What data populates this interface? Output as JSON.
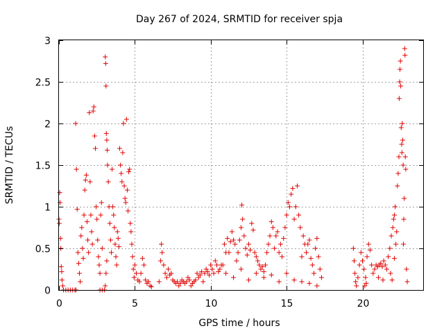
{
  "chart_data": {
    "type": "scatter",
    "title": "Day 267 of 2024, SRMTID for receiver spja",
    "xlabel": "GPS time / hours",
    "ylabel": "SRMTID / TECUs",
    "xlim": [
      0,
      24
    ],
    "ylim": [
      0,
      3
    ],
    "xticks": [
      0,
      5,
      10,
      15,
      20
    ],
    "xtick_labels": [
      "0",
      "5",
      "10",
      "15",
      "20"
    ],
    "yticks": [
      0,
      0.5,
      1,
      1.5,
      2,
      2.5,
      3
    ],
    "ytick_labels": [
      "0",
      "0.5",
      "1",
      "1.5",
      "2",
      "2.5",
      "3"
    ],
    "grid": true,
    "marker": "+",
    "color": "#e00000",
    "series": [
      {
        "name": "SRMTID",
        "points": [
          [
            0.0,
            0.85
          ],
          [
            0.02,
            0.8
          ],
          [
            0.05,
            1.17
          ],
          [
            0.07,
            1.05
          ],
          [
            0.1,
            0.62
          ],
          [
            0.12,
            0.5
          ],
          [
            0.15,
            0.28
          ],
          [
            0.18,
            0.22
          ],
          [
            0.2,
            0.12
          ],
          [
            0.25,
            0.05
          ],
          [
            0.3,
            0.0
          ],
          [
            0.45,
            0.0
          ],
          [
            0.6,
            0.0
          ],
          [
            0.75,
            0.0
          ],
          [
            0.9,
            0.0
          ],
          [
            1.05,
            0.0
          ],
          [
            1.12,
            0.0
          ],
          [
            1.1,
            2.0
          ],
          [
            1.15,
            1.45
          ],
          [
            1.2,
            0.97
          ],
          [
            1.25,
            0.45
          ],
          [
            1.3,
            0.32
          ],
          [
            1.35,
            0.2
          ],
          [
            1.4,
            0.1
          ],
          [
            1.45,
            0.65
          ],
          [
            1.5,
            0.75
          ],
          [
            1.55,
            0.5
          ],
          [
            1.6,
            0.38
          ],
          [
            1.65,
            0.9
          ],
          [
            1.7,
            1.2
          ],
          [
            1.75,
            1.32
          ],
          [
            1.8,
            1.38
          ],
          [
            1.85,
            0.82
          ],
          [
            1.9,
            0.6
          ],
          [
            1.95,
            0.45
          ],
          [
            2.0,
            2.13
          ],
          [
            2.05,
            1.3
          ],
          [
            2.1,
            0.9
          ],
          [
            2.15,
            0.7
          ],
          [
            2.2,
            0.55
          ],
          [
            2.25,
            2.15
          ],
          [
            2.3,
            2.2
          ],
          [
            2.35,
            1.85
          ],
          [
            2.4,
            1.7
          ],
          [
            2.45,
            1.0
          ],
          [
            2.5,
            0.85
          ],
          [
            2.55,
            0.6
          ],
          [
            2.6,
            0.4
          ],
          [
            2.65,
            0.3
          ],
          [
            2.7,
            0.2
          ],
          [
            2.75,
            0.9
          ],
          [
            2.8,
            1.05
          ],
          [
            2.85,
            0.5
          ],
          [
            2.7,
            0.0
          ],
          [
            2.85,
            0.0
          ],
          [
            3.0,
            0.0
          ],
          [
            3.05,
            0.05
          ],
          [
            3.1,
            0.2
          ],
          [
            3.15,
            0.35
          ],
          [
            3.05,
            2.8
          ],
          [
            3.08,
            2.72
          ],
          [
            3.1,
            2.45
          ],
          [
            3.12,
            1.88
          ],
          [
            3.15,
            1.8
          ],
          [
            3.18,
            1.68
          ],
          [
            3.2,
            1.5
          ],
          [
            3.25,
            1.3
          ],
          [
            3.3,
            1.0
          ],
          [
            3.35,
            0.8
          ],
          [
            3.4,
            0.6
          ],
          [
            3.45,
            0.45
          ],
          [
            3.5,
            1.45
          ],
          [
            3.55,
            1.0
          ],
          [
            3.6,
            0.9
          ],
          [
            3.65,
            0.75
          ],
          [
            3.7,
            0.55
          ],
          [
            3.75,
            0.4
          ],
          [
            3.8,
            0.3
          ],
          [
            3.85,
            0.7
          ],
          [
            3.9,
            0.62
          ],
          [
            3.95,
            0.52
          ],
          [
            4.0,
            1.7
          ],
          [
            4.05,
            1.5
          ],
          [
            4.1,
            1.4
          ],
          [
            4.15,
            1.3
          ],
          [
            4.2,
            1.65
          ],
          [
            4.25,
            2.0
          ],
          [
            4.3,
            1.25
          ],
          [
            4.35,
            1.1
          ],
          [
            4.4,
            1.05
          ],
          [
            4.45,
            2.05
          ],
          [
            4.5,
            1.2
          ],
          [
            4.55,
            0.95
          ],
          [
            4.6,
            1.42
          ],
          [
            4.65,
            1.45
          ],
          [
            4.7,
            0.8
          ],
          [
            4.75,
            0.7
          ],
          [
            4.8,
            0.55
          ],
          [
            4.85,
            0.4
          ],
          [
            4.9,
            0.25
          ],
          [
            4.95,
            0.15
          ],
          [
            5.0,
            0.3
          ],
          [
            5.1,
            0.2
          ],
          [
            5.2,
            0.12
          ],
          [
            5.3,
            0.1
          ],
          [
            5.4,
            0.2
          ],
          [
            5.5,
            0.38
          ],
          [
            5.6,
            0.3
          ],
          [
            5.7,
            0.12
          ],
          [
            5.8,
            0.08
          ],
          [
            5.9,
            0.1
          ],
          [
            6.0,
            0.05
          ],
          [
            6.1,
            0.04
          ],
          [
            6.6,
            0.1
          ],
          [
            6.7,
            0.35
          ],
          [
            6.75,
            0.55
          ],
          [
            6.8,
            0.45
          ],
          [
            6.9,
            0.3
          ],
          [
            7.0,
            0.2
          ],
          [
            7.1,
            0.15
          ],
          [
            7.2,
            0.25
          ],
          [
            7.3,
            0.18
          ],
          [
            7.4,
            0.2
          ],
          [
            7.5,
            0.12
          ],
          [
            7.6,
            0.1
          ],
          [
            7.7,
            0.08
          ],
          [
            7.8,
            0.1
          ],
          [
            7.9,
            0.05
          ],
          [
            8.0,
            0.08
          ],
          [
            8.1,
            0.12
          ],
          [
            8.2,
            0.1
          ],
          [
            8.3,
            0.08
          ],
          [
            8.4,
            0.1
          ],
          [
            8.5,
            0.15
          ],
          [
            8.6,
            0.12
          ],
          [
            8.7,
            0.05
          ],
          [
            8.8,
            0.08
          ],
          [
            8.9,
            0.1
          ],
          [
            9.0,
            0.12
          ],
          [
            9.1,
            0.2
          ],
          [
            9.2,
            0.15
          ],
          [
            9.3,
            0.18
          ],
          [
            9.4,
            0.22
          ],
          [
            9.5,
            0.1
          ],
          [
            9.6,
            0.2
          ],
          [
            9.7,
            0.25
          ],
          [
            9.8,
            0.22
          ],
          [
            9.9,
            0.18
          ],
          [
            10.0,
            0.3
          ],
          [
            10.1,
            0.25
          ],
          [
            10.2,
            0.2
          ],
          [
            10.3,
            0.35
          ],
          [
            10.4,
            0.3
          ],
          [
            10.5,
            0.22
          ],
          [
            10.6,
            0.25
          ],
          [
            10.7,
            0.3
          ],
          [
            10.8,
            0.3
          ],
          [
            10.9,
            0.55
          ],
          [
            11.0,
            0.45
          ],
          [
            11.1,
            0.62
          ],
          [
            11.2,
            0.45
          ],
          [
            11.3,
            0.58
          ],
          [
            11.4,
            0.7
          ],
          [
            11.5,
            0.6
          ],
          [
            11.6,
            0.55
          ],
          [
            11.7,
            0.35
          ],
          [
            11.8,
            0.45
          ],
          [
            11.9,
            0.6
          ],
          [
            12.0,
            0.75
          ],
          [
            12.05,
            1.02
          ],
          [
            12.1,
            0.85
          ],
          [
            12.2,
            0.65
          ],
          [
            12.3,
            0.5
          ],
          [
            12.4,
            0.42
          ],
          [
            12.5,
            0.55
          ],
          [
            12.6,
            0.48
          ],
          [
            12.7,
            0.8
          ],
          [
            12.8,
            0.72
          ],
          [
            12.9,
            0.45
          ],
          [
            13.0,
            0.4
          ],
          [
            13.1,
            0.35
          ],
          [
            13.2,
            0.3
          ],
          [
            13.3,
            0.25
          ],
          [
            13.4,
            0.28
          ],
          [
            13.5,
            0.22
          ],
          [
            13.6,
            0.3
          ],
          [
            13.7,
            0.45
          ],
          [
            13.8,
            0.55
          ],
          [
            13.9,
            0.65
          ],
          [
            14.0,
            0.82
          ],
          [
            14.1,
            0.75
          ],
          [
            14.2,
            0.5
          ],
          [
            14.3,
            0.65
          ],
          [
            14.4,
            0.7
          ],
          [
            14.5,
            0.45
          ],
          [
            14.6,
            0.55
          ],
          [
            14.7,
            0.4
          ],
          [
            14.8,
            0.62
          ],
          [
            14.9,
            0.75
          ],
          [
            15.0,
            0.9
          ],
          [
            15.1,
            1.05
          ],
          [
            15.2,
            1.0
          ],
          [
            15.3,
            1.15
          ],
          [
            15.4,
            1.22
          ],
          [
            15.5,
            0.85
          ],
          [
            15.6,
            1.0
          ],
          [
            15.7,
            1.25
          ],
          [
            15.8,
            0.9
          ],
          [
            15.9,
            0.75
          ],
          [
            16.0,
            0.4
          ],
          [
            16.1,
            0.65
          ],
          [
            16.2,
            0.55
          ],
          [
            16.3,
            0.45
          ],
          [
            16.4,
            0.55
          ],
          [
            16.5,
            0.6
          ],
          [
            16.6,
            0.38
          ],
          [
            16.7,
            0.3
          ],
          [
            16.8,
            0.2
          ],
          [
            16.9,
            0.5
          ],
          [
            17.0,
            0.62
          ],
          [
            17.1,
            0.4
          ],
          [
            17.2,
            0.25
          ],
          [
            17.3,
            0.15
          ],
          [
            11.0,
            0.2
          ],
          [
            11.5,
            0.15
          ],
          [
            12.0,
            0.25
          ],
          [
            12.5,
            0.12
          ],
          [
            13.0,
            0.2
          ],
          [
            13.5,
            0.15
          ],
          [
            14.0,
            0.18
          ],
          [
            14.5,
            0.1
          ],
          [
            15.0,
            0.2
          ],
          [
            15.5,
            0.12
          ],
          [
            16.0,
            0.1
          ],
          [
            16.5,
            0.08
          ],
          [
            17.0,
            0.05
          ],
          [
            19.4,
            0.5
          ],
          [
            19.45,
            0.35
          ],
          [
            19.5,
            0.2
          ],
          [
            19.55,
            0.1
          ],
          [
            19.6,
            0.05
          ],
          [
            19.7,
            0.15
          ],
          [
            19.8,
            0.3
          ],
          [
            19.9,
            0.45
          ],
          [
            20.0,
            0.35
          ],
          [
            20.1,
            0.25
          ],
          [
            20.2,
            0.15
          ],
          [
            20.3,
            0.4
          ],
          [
            20.4,
            0.55
          ],
          [
            20.5,
            0.48
          ],
          [
            20.6,
            0.3
          ],
          [
            20.7,
            0.2
          ],
          [
            20.8,
            0.25
          ],
          [
            20.9,
            0.3
          ],
          [
            21.0,
            0.28
          ],
          [
            21.1,
            0.3
          ],
          [
            21.2,
            0.32
          ],
          [
            21.3,
            0.28
          ],
          [
            21.4,
            0.35
          ],
          [
            21.5,
            0.3
          ],
          [
            21.6,
            0.25
          ],
          [
            21.7,
            0.4
          ],
          [
            21.8,
            0.5
          ],
          [
            21.9,
            0.65
          ],
          [
            22.0,
            0.75
          ],
          [
            22.05,
            0.85
          ],
          [
            22.1,
            0.9
          ],
          [
            22.15,
            1.0
          ],
          [
            22.2,
            0.55
          ],
          [
            22.25,
            0.7
          ],
          [
            22.3,
            1.25
          ],
          [
            22.35,
            1.4
          ],
          [
            22.4,
            1.6
          ],
          [
            22.42,
            2.3
          ],
          [
            22.45,
            2.5
          ],
          [
            22.47,
            2.65
          ],
          [
            22.5,
            2.75
          ],
          [
            22.52,
            2.45
          ],
          [
            22.55,
            1.95
          ],
          [
            22.58,
            1.75
          ],
          [
            22.6,
            1.65
          ],
          [
            22.62,
            2.0
          ],
          [
            22.65,
            1.8
          ],
          [
            22.68,
            1.5
          ],
          [
            22.7,
            0.55
          ],
          [
            22.72,
            0.85
          ],
          [
            22.75,
            1.1
          ],
          [
            22.78,
            2.9
          ],
          [
            22.8,
            2.82
          ],
          [
            22.82,
            1.6
          ],
          [
            22.85,
            1.45
          ],
          [
            22.9,
            0.25
          ],
          [
            22.95,
            0.1
          ],
          [
            21.85,
            0.2
          ],
          [
            21.95,
            0.12
          ],
          [
            22.1,
            0.38
          ],
          [
            20.15,
            0.05
          ],
          [
            20.25,
            0.08
          ],
          [
            21.05,
            0.15
          ],
          [
            21.35,
            0.12
          ]
        ]
      }
    ]
  }
}
